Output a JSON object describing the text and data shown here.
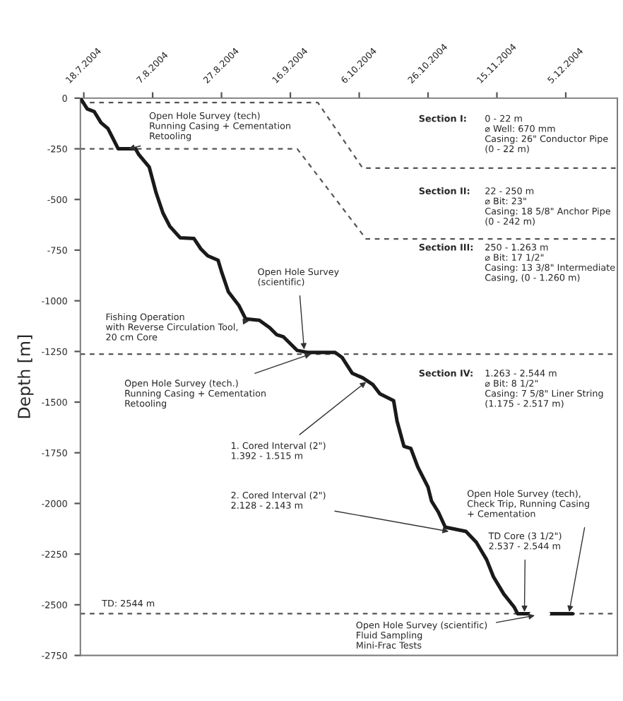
{
  "chart_data": {
    "type": "line",
    "ylabel": "Depth [m]",
    "xlim": [
      "2004-07-17",
      "2004-12-20"
    ],
    "ylim": [
      -2750,
      0
    ],
    "xticks": [
      {
        "value": "2004-07-18",
        "label": "18.7.2004"
      },
      {
        "value": "2004-08-07",
        "label": "7.8.2004"
      },
      {
        "value": "2004-08-27",
        "label": "27.8.2004"
      },
      {
        "value": "2004-09-16",
        "label": "16.9.2004"
      },
      {
        "value": "2004-10-06",
        "label": "6.10.2004"
      },
      {
        "value": "2004-10-26",
        "label": "26.10.2004"
      },
      {
        "value": "2004-11-15",
        "label": "15.11.2004"
      },
      {
        "value": "2004-12-05",
        "label": "5.12.2004"
      }
    ],
    "yticks": [
      0,
      -250,
      -500,
      -750,
      -1000,
      -1250,
      -1500,
      -1750,
      -2000,
      -2250,
      -2500,
      -2750
    ],
    "grid": false,
    "legend": false,
    "marker": "none",
    "series": [
      {
        "color": "#1a1a1a",
        "line_style": "solid",
        "x": [
          "2004-07-17",
          "2004-07-19",
          "2004-07-21",
          "2004-07-23",
          "2004-07-25",
          "2004-07-28",
          "2004-08-02",
          "2004-08-03",
          "2004-08-06",
          "2004-08-08",
          "2004-08-10",
          "2004-08-12",
          "2004-08-15",
          "2004-08-19",
          "2004-08-21",
          "2004-08-23",
          "2004-08-26",
          "2004-08-27",
          "2004-08-29",
          "2004-09-01",
          "2004-09-03",
          "2004-09-07",
          "2004-09-10",
          "2004-09-12",
          "2004-09-14",
          "2004-09-18",
          "2004-09-21",
          "2004-09-29",
          "2004-10-01",
          "2004-10-04",
          "2004-10-07",
          "2004-10-10",
          "2004-10-12",
          "2004-10-16",
          "2004-10-17",
          "2004-10-19",
          "2004-10-21",
          "2004-10-23",
          "2004-10-26",
          "2004-10-27",
          "2004-10-29",
          "2004-10-31",
          "2004-11-06",
          "2004-11-09",
          "2004-11-12",
          "2004-11-14",
          "2004-11-17",
          "2004-11-20",
          "2004-11-21",
          "2004-11-25",
          "2004-11-30",
          "2004-12-07"
        ],
        "values": [
          0,
          -53,
          -66,
          -121,
          -150,
          -250,
          -250,
          -279,
          -340,
          -467,
          -567,
          -633,
          -689,
          -693,
          -744,
          -778,
          -800,
          -856,
          -956,
          -1022,
          -1089,
          -1096,
          -1133,
          -1167,
          -1178,
          -1245,
          -1255,
          -1255,
          -1279,
          -1358,
          -1380,
          -1414,
          -1459,
          -1493,
          -1594,
          -1718,
          -1729,
          -1819,
          -1920,
          -1988,
          -2043,
          -2117,
          -2138,
          -2191,
          -2277,
          -2362,
          -2447,
          -2511,
          -2544,
          -2544,
          -2544,
          -2544
        ]
      },
      {
        "color": "#ffffff",
        "line_style": "solid",
        "x": [
          "2004-11-25",
          "2004-11-30"
        ],
        "values": [
          -2544,
          -2544
        ]
      },
      {
        "color": "#555555",
        "line_style": "dashed",
        "x": [
          "2004-07-17",
          "2004-09-24",
          "2004-10-07",
          "2004-12-20"
        ],
        "values": [
          -22,
          -22,
          -345,
          -345
        ]
      },
      {
        "color": "#555555",
        "line_style": "dashed",
        "x": [
          "2004-07-17",
          "2004-09-18",
          "2004-10-08",
          "2004-12-20"
        ],
        "values": [
          -250,
          -250,
          -695,
          -695
        ]
      }
    ],
    "ref_lines": [
      {
        "axis": "y",
        "value": -1263,
        "color": "#555555",
        "line_style": "dashed"
      },
      {
        "axis": "y",
        "value": -2544,
        "color": "#555555",
        "line_style": "dashed"
      }
    ],
    "annotations": [
      {
        "text": "Open Hole Survey (tech)\nRunning Casing + Cementation\nRetooling",
        "x": "2004-07-31",
        "y": -250
      },
      {
        "text": "Open Hole Survey\n(scientific)",
        "x": "2004-09-20",
        "y": -1240
      },
      {
        "text": "Fishing Operation\nwith Reverse Circulation Tool,\n20 cm Core",
        "x": "2004-09-04",
        "y": -1100
      },
      {
        "text": "Open Hole Survey (tech.)\nRunning Casing + Cementation\nRetooling",
        "x": "2004-09-22",
        "y": -1262
      },
      {
        "text": "1. Cored Interval (2\")\n1.392 - 1.515 m",
        "x": "2004-10-08",
        "y": -1400
      },
      {
        "text": "2. Cored Interval (2\")\n2.128 - 2.143 m",
        "x": "2004-11-01",
        "y": -2138
      },
      {
        "text": "Open Hole Survey (tech),\nCheck Trip, Running Casing\n+ Cementation",
        "x": "2004-12-06",
        "y": -2535
      },
      {
        "text": "TD Core (3 1/2\")\n2.537 - 2.544 m",
        "x": "2004-11-23",
        "y": -2535
      },
      {
        "text": "Open Hole Survey (scientific)\nFluid Sampling\nMini-Frac Tests",
        "x": "2004-11-26",
        "y": -2553
      },
      "Section I:",
      "0 - 22 m\n⌀ Well: 670 mm\nCasing: 26\" Conductor Pipe\n(0 - 22 m)",
      "Section II:",
      "22 - 250 m\n⌀ Bit: 23\"\nCasing: 18 5/8\" Anchor Pipe\n(0 - 242 m)",
      "Section III:",
      "250 - 1.263 m\n⌀ Bit: 17 1/2\"\nCasing: 13 3/8\" Intermediate\nCasing, (0 - 1.260 m)",
      "Section IV:",
      "1.263 - 2.544 m\n⌀ Bit: 8 1/2\"\nCasing: 7 5/8\" Liner String\n(1.175 - 2.517 m)",
      "TD: 2544 m"
    ]
  }
}
